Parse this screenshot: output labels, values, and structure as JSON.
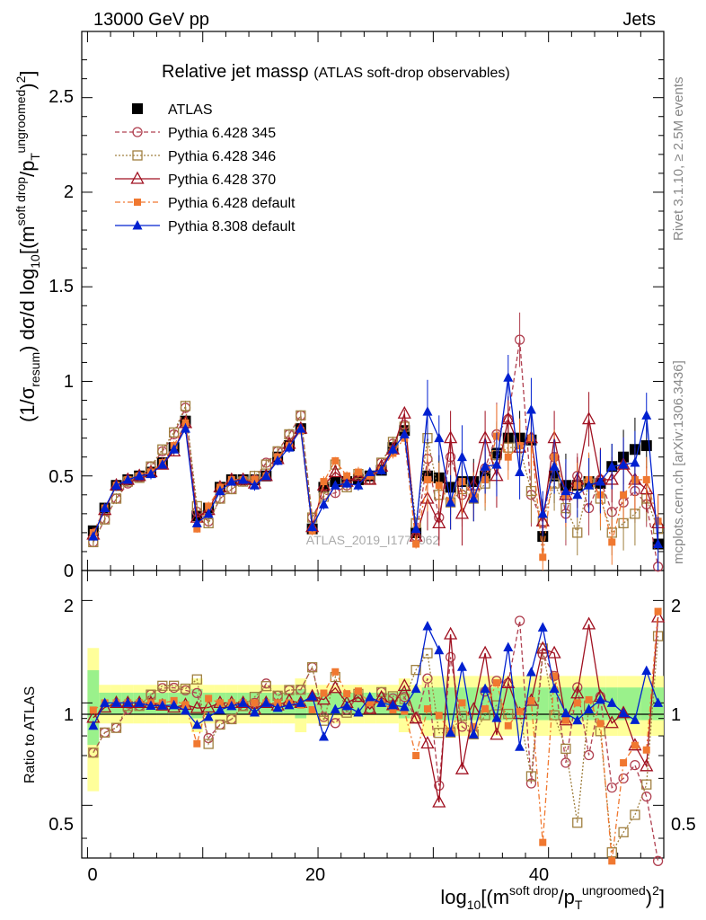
{
  "header": {
    "left": "13000 GeV pp",
    "right": "Jets"
  },
  "side": {
    "rivet": "Rivet 3.1.10, ≥ 2.5M events",
    "mcplots": "mcplots.cern.ch [arXiv:1306.3436]"
  },
  "watermark": "ATLAS_2019_I1772062",
  "title": {
    "main": "Relative jet massρ",
    "sub": "(ATLAS soft-drop observables)"
  },
  "axes": {
    "ylabel_top": "(1/σresum) dσ/d log10[(m^soft drop/pT^ungroomed)^2]",
    "ylabel_top_parts": {
      "a": "(1/σ",
      "b": "resum",
      "c": ") dσ/d log",
      "d": "10",
      "e": "[(m",
      "f": "soft drop",
      "g": "/p",
      "h": "T",
      "i": "ungroomed",
      "j": ")",
      "k": "2",
      "l": "]"
    },
    "ylabel_bottom": "Ratio to ATLAS",
    "xlabel": "log10[(m^soft drop/pT^ungroomed)^2]",
    "xlabel_parts": {
      "a": "log",
      "b": "10",
      "c": "[(m",
      "d": "soft drop",
      "e": "/p",
      "f": "T",
      "g": "ungroomed",
      "h": ")",
      "i": "2",
      "j": "]"
    },
    "top_yticks": [
      "0",
      "0.5",
      "1",
      "1.5",
      "2",
      "2.5"
    ],
    "bottom_yticks": [
      "0.5",
      "1",
      "2"
    ],
    "xticks": [
      "0",
      "20",
      "40"
    ]
  },
  "legend": [
    {
      "label": "ATLAS",
      "color": "#000000",
      "marker": "square-filled",
      "line": "none"
    },
    {
      "label": "Pythia 6.428 345",
      "color": "#b04050",
      "marker": "circle-open",
      "line": "dashed"
    },
    {
      "label": "Pythia 6.428 346",
      "color": "#a08040",
      "marker": "square-open",
      "line": "dotted"
    },
    {
      "label": "Pythia 6.428 370",
      "color": "#a01020",
      "marker": "triangle-open",
      "line": "solid"
    },
    {
      "label": "Pythia 6.428 default",
      "color": "#f07830",
      "marker": "square-filled-small",
      "line": "dashdot"
    },
    {
      "label": "Pythia 8.308 default",
      "color": "#0020d0",
      "marker": "triangle-filled",
      "line": "solid"
    }
  ],
  "chart_data": {
    "type": "line",
    "xlim": [
      -0.5,
      50
    ],
    "ylim_top": [
      0,
      2.85
    ],
    "ylim_ratio": [
      0.35,
      2.45
    ],
    "ratio_scale": "log",
    "x": [
      0.5,
      1.5,
      2.5,
      3.5,
      4.5,
      5.5,
      6.5,
      7.5,
      8.5,
      9.5,
      10.5,
      11.5,
      12.5,
      13.5,
      14.5,
      15.5,
      16.5,
      17.5,
      18.5,
      19.5,
      20.5,
      21.5,
      22.5,
      23.5,
      24.5,
      25.5,
      26.5,
      27.5,
      28.5,
      29.5,
      30.5,
      31.5,
      32.5,
      33.5,
      34.5,
      35.5,
      36.5,
      37.5,
      38.5,
      39.5,
      40.5,
      41.5,
      42.5,
      43.5,
      44.5,
      45.5,
      46.5,
      47.5,
      48.5,
      49.5
    ],
    "series": [
      {
        "name": "ATLAS",
        "values": [
          0.21,
          0.33,
          0.45,
          0.48,
          0.5,
          0.52,
          0.57,
          0.65,
          0.79,
          0.29,
          0.33,
          0.44,
          0.48,
          0.48,
          0.48,
          0.5,
          0.6,
          0.66,
          0.75,
          0.22,
          0.44,
          0.47,
          0.47,
          0.48,
          0.5,
          0.53,
          0.65,
          0.74,
          0.2,
          0.5,
          0.49,
          0.44,
          0.47,
          0.47,
          0.5,
          0.62,
          0.7,
          0.7,
          0.69,
          0.18,
          0.5,
          0.45,
          0.45,
          0.47,
          0.46,
          0.55,
          0.6,
          0.64,
          0.66,
          0.14
        ]
      },
      {
        "name": "Pythia 6.428 345",
        "values": [
          0.15,
          0.27,
          0.38,
          0.46,
          0.49,
          0.55,
          0.63,
          0.72,
          0.86,
          0.31,
          0.26,
          0.38,
          0.43,
          0.47,
          0.48,
          0.57,
          0.63,
          0.72,
          0.82,
          0.28,
          0.4,
          0.41,
          0.45,
          0.5,
          0.48,
          0.57,
          0.67,
          0.77,
          0.18,
          0.59,
          0.28,
          0.6,
          0.4,
          0.38,
          0.54,
          0.72,
          0.8,
          1.22,
          0.4,
          0.25,
          0.6,
          0.3,
          0.5,
          0.33,
          0.48,
          0.31,
          0.36,
          0.42,
          0.35,
          0.02
        ]
      },
      {
        "name": "Pythia 6.428 346",
        "values": [
          0.15,
          0.27,
          0.38,
          0.47,
          0.49,
          0.55,
          0.64,
          0.73,
          0.87,
          0.34,
          0.25,
          0.38,
          0.43,
          0.47,
          0.5,
          0.56,
          0.63,
          0.72,
          0.82,
          0.28,
          0.39,
          0.56,
          0.44,
          0.51,
          0.48,
          0.57,
          0.68,
          0.76,
          0.25,
          0.7,
          0.4,
          0.36,
          0.43,
          0.38,
          0.46,
          0.61,
          0.65,
          0.65,
          0.42,
          0.26,
          0.46,
          0.33,
          0.2,
          0.46,
          0.38,
          0.2,
          0.25,
          0.3,
          0.38,
          0.22
        ]
      },
      {
        "name": "Pythia 6.428 370",
        "values": [
          0.19,
          0.32,
          0.45,
          0.48,
          0.5,
          0.52,
          0.56,
          0.63,
          0.78,
          0.28,
          0.32,
          0.44,
          0.48,
          0.48,
          0.46,
          0.5,
          0.59,
          0.67,
          0.75,
          0.23,
          0.45,
          0.52,
          0.47,
          0.5,
          0.48,
          0.55,
          0.64,
          0.83,
          0.18,
          0.38,
          0.25,
          0.7,
          0.3,
          0.45,
          0.7,
          0.5,
          0.8,
          0.65,
          0.7,
          0.26,
          0.7,
          0.4,
          0.48,
          0.8,
          0.48,
          0.48,
          0.56,
          0.48,
          0.43,
          0.25
        ]
      },
      {
        "name": "Pythia 6.428 default",
        "values": [
          0.2,
          0.33,
          0.45,
          0.48,
          0.5,
          0.52,
          0.57,
          0.66,
          0.78,
          0.22,
          0.34,
          0.44,
          0.48,
          0.48,
          0.48,
          0.5,
          0.6,
          0.66,
          0.74,
          0.21,
          0.47,
          0.58,
          0.5,
          0.52,
          0.5,
          0.53,
          0.62,
          0.7,
          0.14,
          0.48,
          0.45,
          0.36,
          0.47,
          0.4,
          0.48,
          0.71,
          0.6,
          0.66,
          0.7,
          0.07,
          0.6,
          0.4,
          0.45,
          0.48,
          0.4,
          0.15,
          0.4,
          0.48,
          0.48,
          0.26
        ]
      },
      {
        "name": "Pythia 8.308 default",
        "values": [
          0.18,
          0.33,
          0.45,
          0.48,
          0.5,
          0.51,
          0.56,
          0.64,
          0.75,
          0.25,
          0.3,
          0.42,
          0.47,
          0.48,
          0.45,
          0.5,
          0.58,
          0.65,
          0.75,
          0.23,
          0.35,
          0.45,
          0.46,
          0.45,
          0.52,
          0.53,
          0.64,
          0.72,
          0.22,
          0.84,
          0.7,
          0.36,
          0.6,
          0.38,
          0.55,
          0.56,
          1.02,
          0.52,
          0.85,
          0.3,
          0.55,
          0.42,
          0.4,
          0.45,
          0.47,
          0.55,
          0.56,
          0.57,
          0.82,
          0.14
        ]
      }
    ]
  }
}
